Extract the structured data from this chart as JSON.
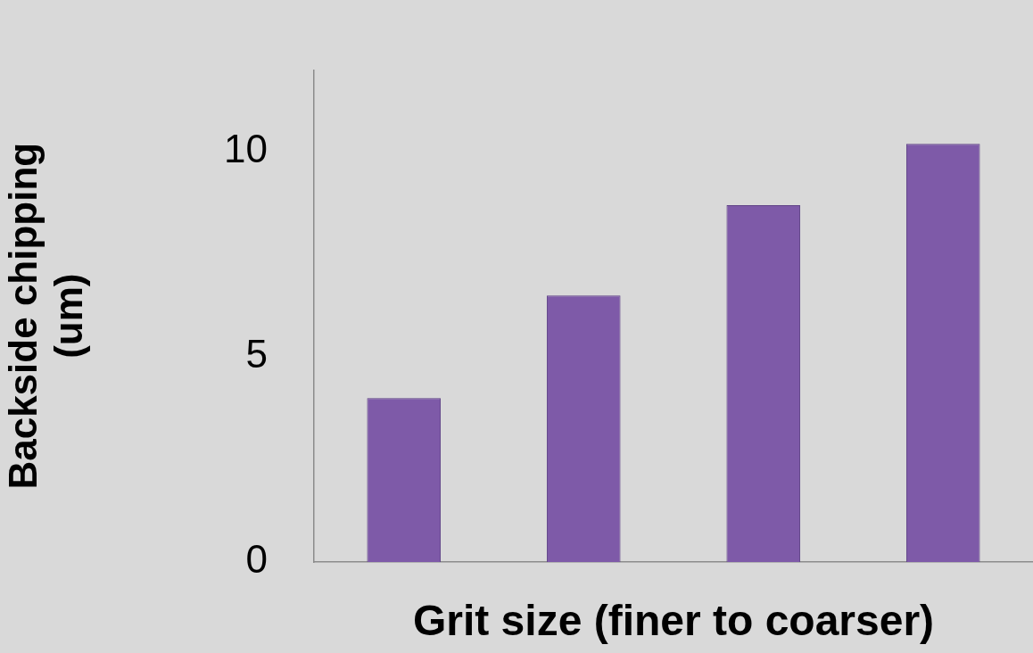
{
  "chart_data": {
    "type": "bar",
    "xlabel": "Grit size (finer to coarser)",
    "ylabel": "Backside chipping\n(um)",
    "categories": [
      null,
      null,
      null,
      null
    ],
    "values": [
      4.0,
      6.5,
      8.7,
      10.2
    ],
    "color": "#7e5aa8",
    "ylim": [
      0,
      12
    ],
    "yticks": [
      0,
      5,
      10
    ],
    "grid": false,
    "legend": false
  }
}
